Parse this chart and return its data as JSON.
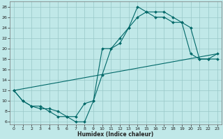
{
  "xlabel": "Humidex (Indice chaleur)",
  "bg_color": "#c0e8e8",
  "line_color": "#006868",
  "grid_color": "#98c8c8",
  "xlim": [
    -0.5,
    23.5
  ],
  "ylim": [
    5.5,
    29
  ],
  "xticks": [
    0,
    1,
    2,
    3,
    4,
    5,
    6,
    7,
    8,
    9,
    10,
    11,
    12,
    13,
    14,
    15,
    16,
    17,
    18,
    19,
    20,
    21,
    22,
    23
  ],
  "yticks": [
    6,
    8,
    10,
    12,
    14,
    16,
    18,
    20,
    22,
    24,
    26,
    28
  ],
  "line1_x": [
    0,
    1,
    2,
    3,
    4,
    5,
    6,
    7,
    8,
    9,
    10,
    11,
    12,
    13,
    14,
    15,
    16,
    17,
    18,
    19,
    20,
    21,
    22,
    23
  ],
  "line1_y": [
    12,
    10,
    9,
    9,
    8,
    7,
    7,
    6,
    6,
    10,
    15,
    20,
    21,
    24,
    28,
    27,
    27,
    27,
    26,
    25,
    19,
    18,
    18,
    18
  ],
  "line2_x": [
    0,
    1,
    2,
    3,
    4,
    5,
    6,
    7,
    8,
    9,
    10,
    11,
    12,
    13,
    14,
    15,
    16,
    17,
    18,
    19,
    20,
    21,
    22,
    23
  ],
  "line2_y": [
    12,
    10,
    9,
    8.5,
    8.5,
    8,
    7,
    7,
    9.5,
    10,
    20,
    20,
    22,
    24,
    26,
    27,
    26,
    26,
    25,
    25,
    24,
    18,
    18,
    19
  ],
  "line3_x": [
    0,
    23
  ],
  "line3_y": [
    12,
    19
  ],
  "marker_line1_x": [
    0,
    1,
    2,
    3,
    4,
    5,
    6,
    7,
    8,
    9,
    10,
    11,
    12,
    13,
    14,
    15,
    16,
    17,
    18,
    19,
    20,
    21,
    22,
    23
  ],
  "marker_line1_y": [
    12,
    10,
    9,
    9,
    8,
    7,
    7,
    6,
    6,
    10,
    15,
    20,
    21,
    24,
    28,
    27,
    27,
    27,
    26,
    25,
    19,
    18,
    18,
    18
  ],
  "marker_line2_x": [
    0,
    1,
    2,
    3,
    4,
    5,
    6,
    7,
    8,
    9,
    10,
    11,
    12,
    13,
    14,
    15,
    16,
    17,
    18,
    19,
    20,
    21,
    22,
    23
  ],
  "marker_line2_y": [
    12,
    10,
    9,
    8.5,
    8.5,
    8,
    7,
    7,
    9.5,
    10,
    20,
    20,
    22,
    24,
    26,
    27,
    26,
    26,
    25,
    25,
    24,
    18,
    18,
    19
  ]
}
